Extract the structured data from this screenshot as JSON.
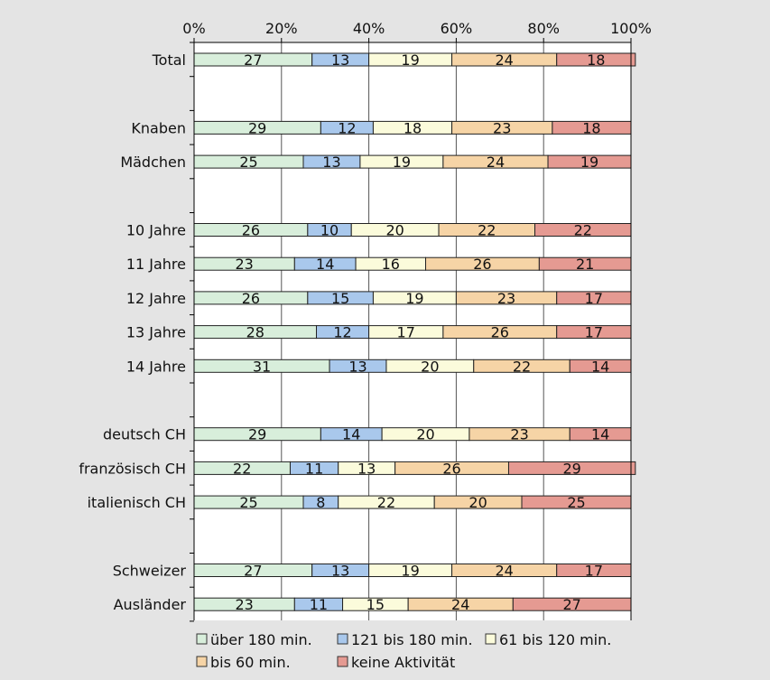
{
  "chart_data": {
    "type": "bar",
    "stacked": true,
    "orientation": "horizontal",
    "percent_stacked": true,
    "x_ticks": [
      "0%",
      "20%",
      "40%",
      "60%",
      "80%",
      "100%"
    ],
    "xlim": [
      0,
      100
    ],
    "grid": true,
    "legend_position": "bottom",
    "categories": [
      "Total",
      "",
      "Knaben",
      "Mädchen",
      "",
      "10 Jahre",
      "11 Jahre",
      "12 Jahre",
      "13 Jahre",
      "14 Jahre",
      "",
      "deutsch CH",
      "französisch CH",
      "italienisch CH",
      "",
      "Schweizer",
      "Ausländer"
    ],
    "series": [
      {
        "name": "über 180 min.",
        "color": "#d8eedb",
        "values": [
          27,
          null,
          29,
          25,
          null,
          26,
          23,
          26,
          28,
          31,
          null,
          29,
          22,
          25,
          null,
          27,
          23
        ]
      },
      {
        "name": "121 bis 180 min.",
        "color": "#a9c8ec",
        "values": [
          13,
          null,
          12,
          13,
          null,
          10,
          14,
          15,
          12,
          13,
          null,
          14,
          11,
          8,
          null,
          13,
          11
        ]
      },
      {
        "name": "61 bis 120 min.",
        "color": "#fbfbdb",
        "values": [
          19,
          null,
          18,
          19,
          null,
          20,
          16,
          19,
          17,
          20,
          null,
          20,
          13,
          22,
          null,
          19,
          15
        ]
      },
      {
        "name": "bis 60 min.",
        "color": "#f6d4a6",
        "values": [
          24,
          null,
          23,
          24,
          null,
          22,
          26,
          23,
          26,
          22,
          null,
          23,
          26,
          20,
          null,
          24,
          24
        ]
      },
      {
        "name": "keine Aktivität",
        "color": "#e59a92",
        "values": [
          18,
          null,
          18,
          19,
          null,
          22,
          21,
          17,
          17,
          14,
          null,
          14,
          29,
          25,
          null,
          17,
          27
        ]
      }
    ]
  }
}
